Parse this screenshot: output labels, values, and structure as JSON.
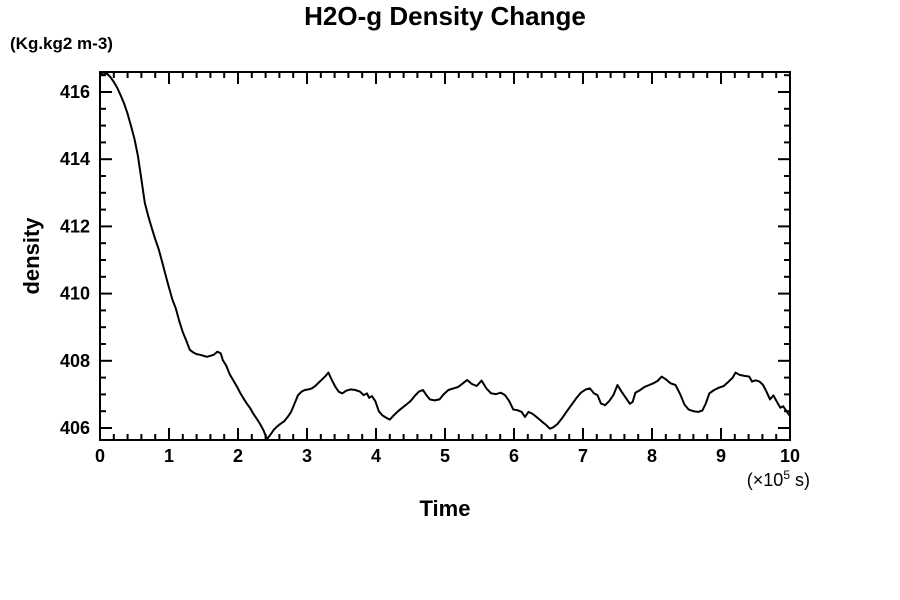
{
  "header": {
    "title": "H2O-g Density Change"
  },
  "axes": {
    "y_unit_label": "(Kg.kg2 m-3)",
    "y_label": "density",
    "x_label": "Time",
    "x_unit_prefix": "(×10",
    "x_unit_exponent": "5",
    "x_unit_suffix": " s)"
  },
  "colors": {
    "line": "#000000",
    "frame": "#000000",
    "background": "#ffffff",
    "text": "#000000"
  },
  "chart_data": {
    "type": "line",
    "title": "H2O-g Density Change",
    "xlabel": "Time",
    "x_unit": "×10^5 s",
    "ylabel": "density",
    "y_unit": "Kg.kg2 m-3",
    "xlim": [
      0,
      10
    ],
    "ylim": [
      405.64,
      416.6
    ],
    "grid": false,
    "legend": "none",
    "x_major_ticks": [
      0,
      1,
      2,
      3,
      4,
      5,
      6,
      7,
      8,
      9,
      10
    ],
    "x_tick_labels": [
      "0",
      "1",
      "2",
      "3",
      "4",
      "5",
      "6",
      "7",
      "8",
      "9",
      "10"
    ],
    "x_minor_step": 0.2,
    "y_major_ticks": [
      406,
      408,
      410,
      412,
      414,
      416
    ],
    "y_tick_labels": [
      "406",
      "408",
      "410",
      "412",
      "414",
      "416"
    ],
    "y_minor_step": 0.5,
    "series": [
      {
        "name": "H2O-g density",
        "points": [
          [
            0.0,
            416.55
          ],
          [
            0.05,
            416.52
          ],
          [
            0.1,
            416.55
          ],
          [
            0.15,
            416.45
          ],
          [
            0.2,
            416.3
          ],
          [
            0.25,
            416.12
          ],
          [
            0.3,
            415.9
          ],
          [
            0.35,
            415.65
          ],
          [
            0.4,
            415.35
          ],
          [
            0.45,
            414.98
          ],
          [
            0.5,
            414.6
          ],
          [
            0.55,
            414.1
          ],
          [
            0.6,
            413.4
          ],
          [
            0.65,
            412.7
          ],
          [
            0.7,
            412.3
          ],
          [
            0.75,
            411.95
          ],
          [
            0.8,
            411.62
          ],
          [
            0.85,
            411.32
          ],
          [
            0.9,
            410.95
          ],
          [
            0.95,
            410.55
          ],
          [
            1.0,
            410.18
          ],
          [
            1.05,
            409.82
          ],
          [
            1.1,
            409.55
          ],
          [
            1.15,
            409.18
          ],
          [
            1.2,
            408.85
          ],
          [
            1.25,
            408.6
          ],
          [
            1.3,
            408.33
          ],
          [
            1.35,
            408.25
          ],
          [
            1.4,
            408.2
          ],
          [
            1.45,
            408.18
          ],
          [
            1.5,
            408.15
          ],
          [
            1.55,
            408.12
          ],
          [
            1.6,
            408.15
          ],
          [
            1.65,
            408.18
          ],
          [
            1.7,
            408.27
          ],
          [
            1.75,
            408.22
          ],
          [
            1.78,
            408.02
          ],
          [
            1.83,
            407.85
          ],
          [
            1.88,
            407.6
          ],
          [
            1.93,
            407.42
          ],
          [
            1.98,
            407.25
          ],
          [
            2.03,
            407.05
          ],
          [
            2.08,
            406.88
          ],
          [
            2.13,
            406.72
          ],
          [
            2.18,
            406.58
          ],
          [
            2.22,
            406.43
          ],
          [
            2.27,
            406.28
          ],
          [
            2.32,
            406.12
          ],
          [
            2.37,
            405.93
          ],
          [
            2.42,
            405.67
          ],
          [
            2.47,
            405.8
          ],
          [
            2.52,
            405.95
          ],
          [
            2.57,
            406.05
          ],
          [
            2.62,
            406.13
          ],
          [
            2.67,
            406.2
          ],
          [
            2.72,
            406.33
          ],
          [
            2.77,
            406.48
          ],
          [
            2.82,
            406.73
          ],
          [
            2.87,
            406.98
          ],
          [
            2.92,
            407.08
          ],
          [
            2.97,
            407.13
          ],
          [
            3.02,
            407.15
          ],
          [
            3.07,
            407.18
          ],
          [
            3.12,
            407.25
          ],
          [
            3.17,
            407.35
          ],
          [
            3.22,
            407.45
          ],
          [
            3.27,
            407.55
          ],
          [
            3.31,
            407.65
          ],
          [
            3.36,
            407.43
          ],
          [
            3.41,
            407.23
          ],
          [
            3.46,
            407.08
          ],
          [
            3.51,
            407.03
          ],
          [
            3.57,
            407.11
          ],
          [
            3.63,
            407.15
          ],
          [
            3.7,
            407.13
          ],
          [
            3.77,
            407.08
          ],
          [
            3.82,
            406.98
          ],
          [
            3.87,
            407.03
          ],
          [
            3.9,
            406.9
          ],
          [
            3.94,
            406.95
          ],
          [
            3.99,
            406.8
          ],
          [
            4.04,
            406.5
          ],
          [
            4.09,
            406.38
          ],
          [
            4.15,
            406.3
          ],
          [
            4.2,
            406.25
          ],
          [
            4.26,
            406.38
          ],
          [
            4.32,
            406.5
          ],
          [
            4.38,
            406.6
          ],
          [
            4.44,
            406.7
          ],
          [
            4.5,
            406.8
          ],
          [
            4.56,
            406.95
          ],
          [
            4.62,
            407.08
          ],
          [
            4.68,
            407.13
          ],
          [
            4.73,
            406.98
          ],
          [
            4.78,
            406.85
          ],
          [
            4.85,
            406.82
          ],
          [
            4.92,
            406.85
          ],
          [
            4.98,
            407.0
          ],
          [
            5.05,
            407.13
          ],
          [
            5.12,
            407.18
          ],
          [
            5.19,
            407.22
          ],
          [
            5.26,
            407.33
          ],
          [
            5.32,
            407.43
          ],
          [
            5.39,
            407.31
          ],
          [
            5.46,
            407.25
          ],
          [
            5.53,
            407.41
          ],
          [
            5.6,
            407.18
          ],
          [
            5.67,
            407.03
          ],
          [
            5.74,
            407.01
          ],
          [
            5.81,
            407.05
          ],
          [
            5.87,
            406.98
          ],
          [
            5.93,
            406.8
          ],
          [
            5.99,
            406.55
          ],
          [
            6.05,
            406.53
          ],
          [
            6.11,
            406.48
          ],
          [
            6.16,
            406.33
          ],
          [
            6.21,
            406.48
          ],
          [
            6.27,
            406.42
          ],
          [
            6.33,
            406.32
          ],
          [
            6.4,
            406.2
          ],
          [
            6.46,
            406.1
          ],
          [
            6.52,
            405.98
          ],
          [
            6.57,
            406.02
          ],
          [
            6.63,
            406.12
          ],
          [
            6.7,
            406.3
          ],
          [
            6.76,
            406.48
          ],
          [
            6.83,
            406.68
          ],
          [
            6.9,
            406.88
          ],
          [
            6.97,
            407.05
          ],
          [
            7.04,
            407.15
          ],
          [
            7.1,
            407.18
          ],
          [
            7.16,
            407.03
          ],
          [
            7.21,
            406.98
          ],
          [
            7.26,
            406.73
          ],
          [
            7.32,
            406.68
          ],
          [
            7.38,
            406.8
          ],
          [
            7.44,
            406.98
          ],
          [
            7.5,
            407.28
          ],
          [
            7.56,
            407.08
          ],
          [
            7.62,
            406.9
          ],
          [
            7.68,
            406.72
          ],
          [
            7.72,
            406.78
          ],
          [
            7.76,
            407.05
          ],
          [
            7.82,
            407.12
          ],
          [
            7.89,
            407.22
          ],
          [
            7.96,
            407.28
          ],
          [
            8.02,
            407.33
          ],
          [
            8.08,
            407.4
          ],
          [
            8.14,
            407.53
          ],
          [
            8.2,
            407.45
          ],
          [
            8.27,
            407.33
          ],
          [
            8.34,
            407.28
          ],
          [
            8.41,
            407.0
          ],
          [
            8.47,
            406.7
          ],
          [
            8.53,
            406.55
          ],
          [
            8.6,
            406.5
          ],
          [
            8.67,
            406.48
          ],
          [
            8.73,
            406.52
          ],
          [
            8.78,
            406.73
          ],
          [
            8.83,
            407.03
          ],
          [
            8.9,
            407.13
          ],
          [
            8.97,
            407.2
          ],
          [
            9.04,
            407.25
          ],
          [
            9.11,
            407.38
          ],
          [
            9.17,
            407.5
          ],
          [
            9.21,
            407.65
          ],
          [
            9.27,
            407.58
          ],
          [
            9.34,
            407.55
          ],
          [
            9.41,
            407.53
          ],
          [
            9.45,
            407.38
          ],
          [
            9.5,
            407.42
          ],
          [
            9.56,
            407.38
          ],
          [
            9.61,
            407.28
          ],
          [
            9.66,
            407.08
          ],
          [
            9.71,
            406.85
          ],
          [
            9.76,
            406.97
          ],
          [
            9.81,
            406.78
          ],
          [
            9.86,
            406.6
          ],
          [
            9.9,
            406.65
          ],
          [
            9.95,
            406.5
          ],
          [
            10.0,
            406.35
          ]
        ]
      }
    ]
  }
}
